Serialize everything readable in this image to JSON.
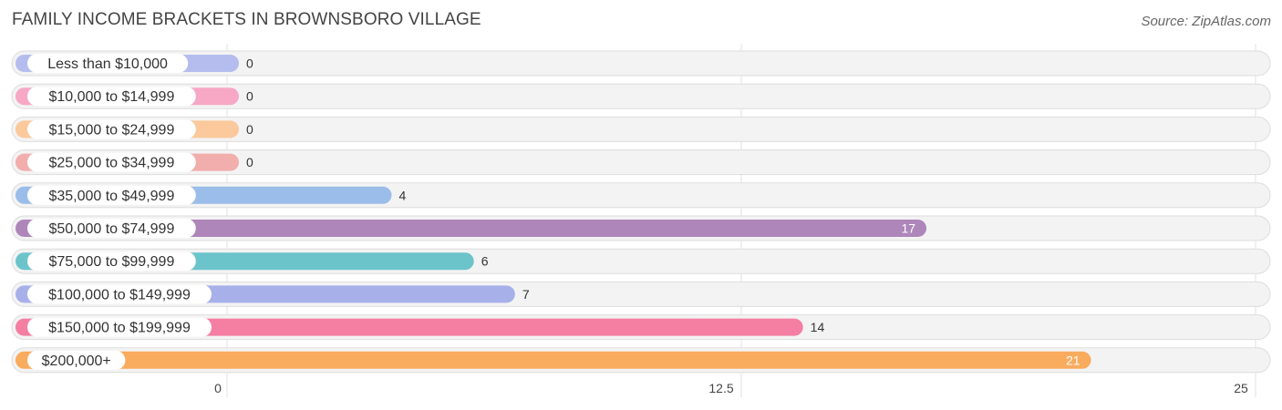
{
  "title": "FAMILY INCOME BRACKETS IN BROWNSBORO VILLAGE",
  "source": "Source: ZipAtlas.com",
  "chart_data": {
    "type": "bar",
    "orientation": "horizontal",
    "categories": [
      "Less than $10,000",
      "$10,000 to $14,999",
      "$15,000 to $24,999",
      "$25,000 to $34,999",
      "$35,000 to $49,999",
      "$50,000 to $74,999",
      "$75,000 to $99,999",
      "$100,000 to $149,999",
      "$150,000 to $199,999",
      "$200,000+"
    ],
    "values": [
      0,
      0,
      0,
      0,
      4,
      17,
      6,
      7,
      14,
      21
    ],
    "value_labels": [
      "0",
      "0",
      "0",
      "0",
      "4",
      "17",
      "6",
      "7",
      "14",
      "21"
    ],
    "colors": [
      "#b5bdee",
      "#f7a8c4",
      "#fbc99c",
      "#f2adad",
      "#9bbde9",
      "#ae86ba",
      "#6cc4cb",
      "#a8b0ea",
      "#f47fa3",
      "#f9ab5e"
    ],
    "xlim": [
      0,
      25
    ],
    "xticks": [
      0,
      12.5,
      25
    ],
    "xtick_labels": [
      "0",
      "12.5",
      "25"
    ],
    "grid": true,
    "title": "FAMILY INCOME BRACKETS IN BROWNSBORO VILLAGE",
    "xlabel": "",
    "ylabel": ""
  }
}
